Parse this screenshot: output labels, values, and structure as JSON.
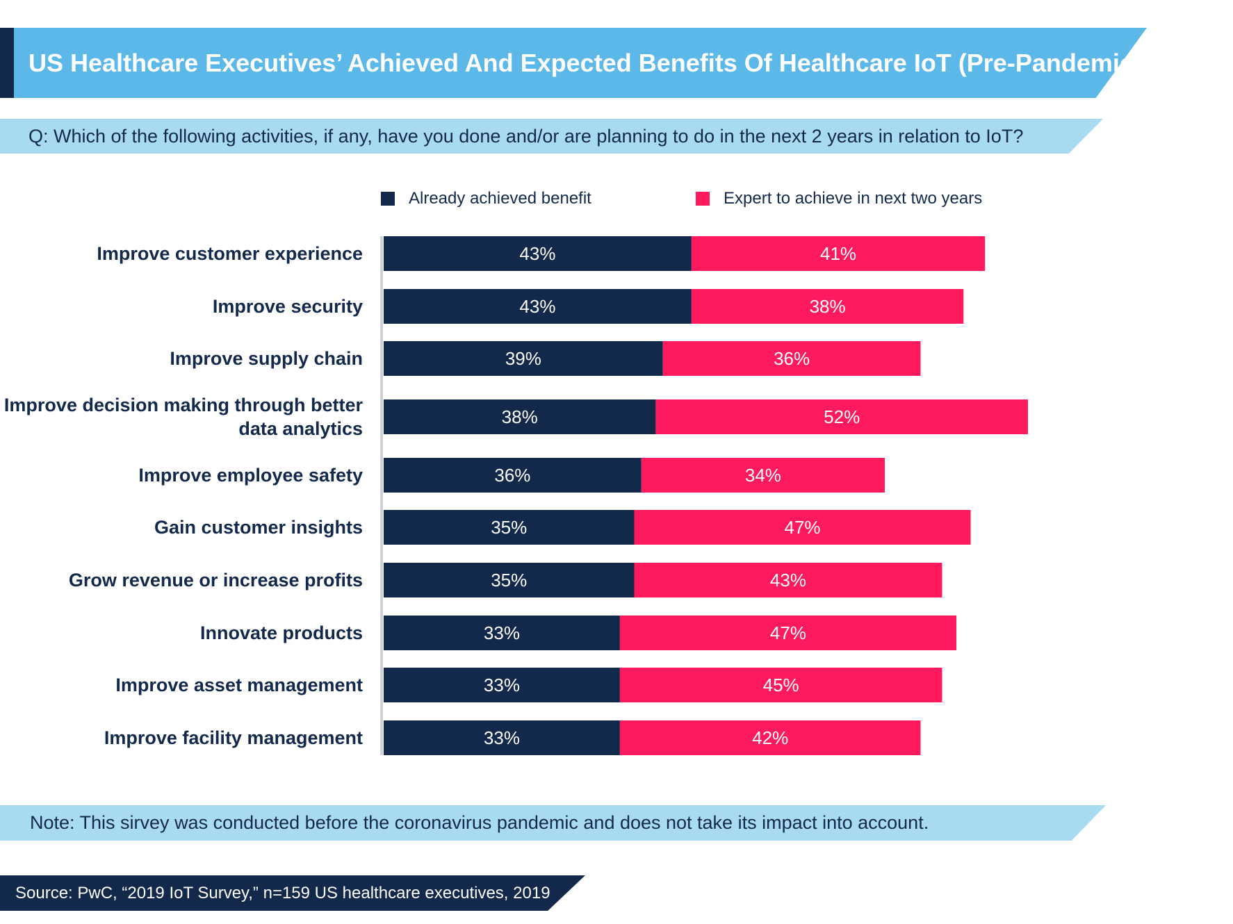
{
  "header": {
    "title": "US Healthcare Executives’ Achieved And Expected Benefits Of Healthcare IoT (Pre-Pandemic)",
    "question": "Q: Which of the following activities, if any, have you done and/or are planning to do in the next 2 years in relation to IoT?"
  },
  "legend": {
    "items": [
      {
        "label": "Already achieved benefit",
        "color": "#13294b"
      },
      {
        "label": "Expert to achieve in next two years",
        "color": "#ff1a5e"
      }
    ]
  },
  "chart_data": {
    "type": "bar",
    "orientation": "horizontal",
    "stacked": true,
    "categories": [
      "Improve customer experience",
      "Improve security",
      "Improve supply chain",
      "Improve decision making through better data analytics",
      "Improve employee safety",
      "Gain customer insights",
      "Grow revenue or increase profits",
      "Innovate products",
      "Improve asset management",
      "Improve facility management"
    ],
    "series": [
      {
        "name": "Already achieved benefit",
        "color": "#13294b",
        "values": [
          43,
          43,
          39,
          38,
          36,
          35,
          35,
          33,
          33,
          33
        ]
      },
      {
        "name": "Expert to achieve in next two years",
        "color": "#ff1a5e",
        "values": [
          41,
          38,
          36,
          52,
          34,
          47,
          43,
          47,
          45,
          42
        ]
      }
    ],
    "value_suffix": "%",
    "grid": false,
    "legend_position": "top"
  },
  "footer": {
    "note": "Note: This sirvey was conducted before the coronavirus pandemic and does not take its impact into account.",
    "source": "Source: PwC, “2019 IoT Survey,” n=159 US healthcare executives, 2019"
  }
}
